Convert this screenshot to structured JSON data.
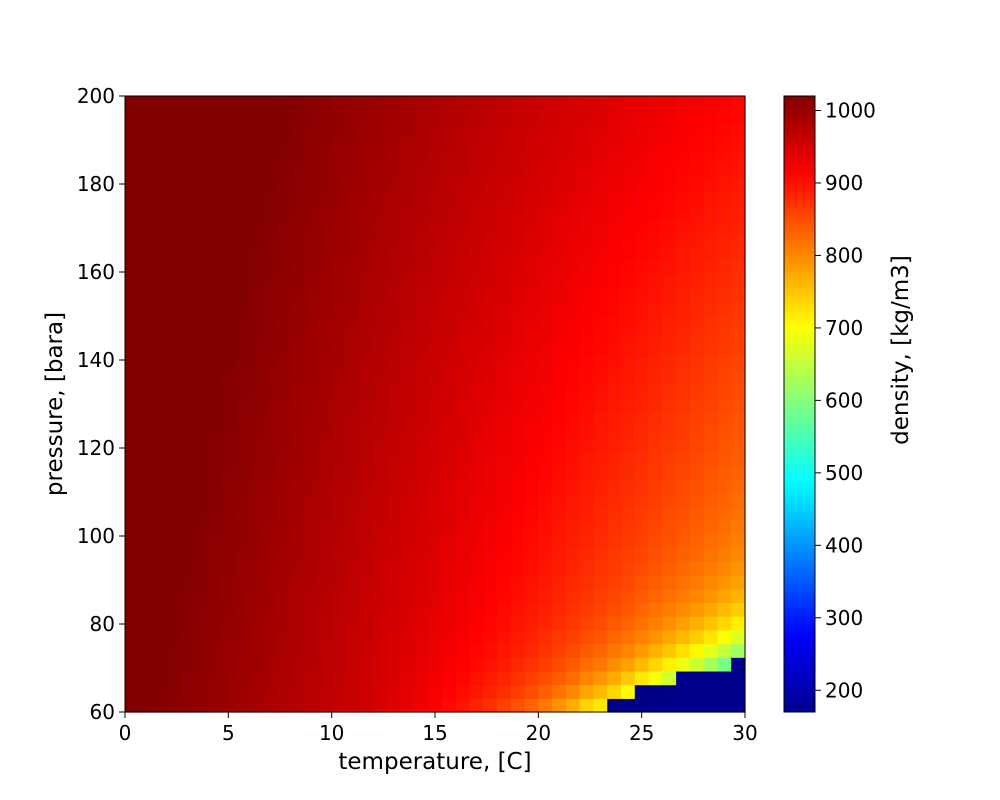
{
  "chart_data": {
    "type": "heatmap",
    "title": "",
    "xlabel": "temperature, [C]",
    "ylabel": "pressure, [bara]",
    "xlim": [
      0,
      30
    ],
    "ylim": [
      60,
      200
    ],
    "x_ticks": [
      "0",
      "5",
      "10",
      "15",
      "20",
      "25",
      "30"
    ],
    "y_ticks": [
      "60",
      "80",
      "100",
      "120",
      "140",
      "160",
      "180",
      "200"
    ],
    "colormap": "jet",
    "grid": false,
    "grid_size": {
      "nx": 45,
      "ny": 45
    },
    "colorbar": {
      "label": "density, [kg/m3]",
      "range": [
        170,
        1020
      ],
      "ticks": [
        "200",
        "300",
        "400",
        "500",
        "600",
        "700",
        "800",
        "900",
        "1000"
      ]
    },
    "phase_boundary": [
      {
        "t": 21.8,
        "p": 60.5
      },
      {
        "t": 23.0,
        "p": 61.5
      },
      {
        "t": 24.0,
        "p": 63.0
      },
      {
        "t": 25.0,
        "p": 64.8
      },
      {
        "t": 26.0,
        "p": 66.3
      },
      {
        "t": 27.0,
        "p": 67.8
      },
      {
        "t": 28.0,
        "p": 69.0
      },
      {
        "t": 29.0,
        "p": 70.8
      },
      {
        "t": 30.0,
        "p": 72.3
      }
    ],
    "sample_values": [
      {
        "t": 0,
        "p": 200,
        "density": 1018
      },
      {
        "t": 0,
        "p": 60,
        "density": 945
      },
      {
        "t": 30,
        "p": 200,
        "density": 875
      },
      {
        "t": 15,
        "p": 100,
        "density": 880
      },
      {
        "t": 20,
        "p": 60,
        "density": 800
      },
      {
        "t": 28,
        "p": 72,
        "density": 700
      },
      {
        "t": 29,
        "p": 78,
        "density": 720
      },
      {
        "t": 26,
        "p": 62,
        "density": 195
      }
    ]
  }
}
